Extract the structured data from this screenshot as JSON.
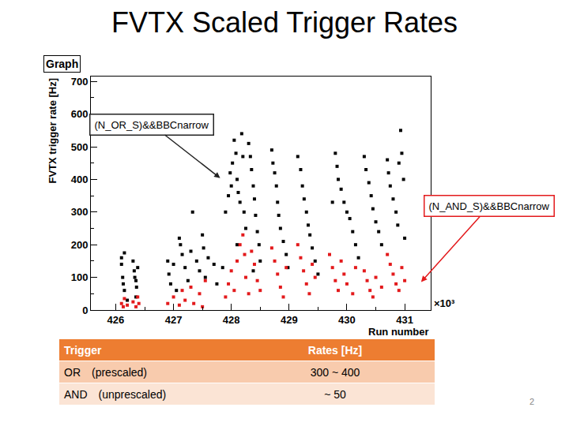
{
  "title": "FVTX Scaled Trigger Rates",
  "chart_data": {
    "type": "scatter",
    "title": "Graph",
    "x_label": "Run number",
    "y_label": "FVTX trigger rate [Hz]",
    "x_scale_label": "×10³",
    "xlim": [
      425570,
      431450
    ],
    "xticks": [
      {
        "value": 426000,
        "label": "426"
      },
      {
        "value": 427000,
        "label": "427"
      },
      {
        "value": 428000,
        "label": "428"
      },
      {
        "value": 429000,
        "label": "429"
      },
      {
        "value": 430000,
        "label": "430"
      },
      {
        "value": 431000,
        "label": "431"
      }
    ],
    "ylim": [
      0,
      715
    ],
    "yticks": [
      0,
      100,
      200,
      300,
      400,
      500,
      600,
      700
    ],
    "grid": false,
    "annotations": [
      {
        "text": "(N_OR_S)&&BBCnarrow",
        "x": 427807,
        "y": 404,
        "color": "#222222"
      },
      {
        "text": "(N_AND_S)&&BBCnarrow",
        "x": 431284,
        "y": 86,
        "color": "#e31a1c"
      }
    ],
    "series": [
      {
        "color": "#000000",
        "marker": "square",
        "x": [
          426100,
          426100,
          426120,
          426130,
          426150,
          426150,
          426300,
          426320,
          426330,
          426350,
          426360,
          426380,
          426200,
          426350,
          426900,
          426920,
          426950,
          427000,
          427050,
          427100,
          427120,
          427150,
          427200,
          427250,
          427300,
          427330,
          427400,
          427450,
          427500,
          427520,
          427550,
          427600,
          427700,
          427750,
          427850,
          427900,
          427950,
          427980,
          428000,
          428020,
          428050,
          428080,
          428100,
          428120,
          428150,
          428180,
          428200,
          428220,
          428250,
          428100,
          428300,
          428330,
          428350,
          428380,
          428400,
          428420,
          428450,
          428480,
          428500,
          428380,
          428700,
          428720,
          428750,
          428780,
          428800,
          428820,
          428850,
          428900,
          428950,
          428980,
          429150,
          429200,
          429230,
          429260,
          429300,
          429330,
          429360,
          429400,
          429450,
          429500,
          429750,
          429800,
          429830,
          429850,
          429900,
          429950,
          430000,
          430050,
          430100,
          430150,
          430200,
          430300,
          430330,
          430380,
          430420,
          430450,
          430500,
          430550,
          430600,
          430700,
          430720,
          430750,
          430800,
          430850,
          430880,
          430900,
          430930,
          430950,
          430980,
          431000
        ],
        "values": [
          160,
          140,
          100,
          80,
          60,
          175,
          150,
          120,
          100,
          90,
          70,
          130,
          30,
          40,
          150,
          110,
          80,
          140,
          60,
          220,
          200,
          170,
          130,
          90,
          180,
          300,
          150,
          120,
          230,
          190,
          100,
          160,
          140,
          80,
          130,
          300,
          350,
          420,
          380,
          450,
          520,
          480,
          400,
          360,
          330,
          540,
          470,
          300,
          250,
          200,
          510,
          470,
          430,
          380,
          340,
          290,
          240,
          200,
          150,
          120,
          490,
          450,
          420,
          380,
          330,
          290,
          250,
          210,
          170,
          130,
          470,
          430,
          380,
          340,
          300,
          260,
          230,
          190,
          150,
          110,
          330,
          480,
          440,
          400,
          370,
          330,
          300,
          280,
          240,
          200,
          160,
          470,
          430,
          390,
          350,
          310,
          270,
          240,
          200,
          460,
          420,
          380,
          340,
          300,
          260,
          450,
          550,
          480,
          400,
          220
        ]
      },
      {
        "color": "#e31a1c",
        "marker": "square",
        "x": [
          426100,
          426130,
          426150,
          426200,
          426300,
          426350,
          426380,
          426400,
          426900,
          427000,
          427100,
          427150,
          427200,
          427300,
          427350,
          427450,
          427500,
          427550,
          427900,
          427950,
          428000,
          428050,
          428100,
          428150,
          428200,
          428230,
          428250,
          428300,
          428350,
          428400,
          428450,
          428500,
          428700,
          428750,
          428800,
          428850,
          428900,
          428950,
          429150,
          429200,
          429250,
          429300,
          429350,
          429400,
          429450,
          429700,
          429750,
          429800,
          429850,
          429900,
          429950,
          430000,
          430100,
          430150,
          430300,
          430350,
          430400,
          430450,
          430500,
          430600,
          430700,
          430750,
          430800,
          430850,
          430900,
          430950,
          431000
        ],
        "values": [
          20,
          10,
          35,
          15,
          25,
          10,
          40,
          20,
          20,
          40,
          15,
          60,
          30,
          70,
          20,
          50,
          10,
          90,
          40,
          80,
          120,
          60,
          150,
          200,
          230,
          170,
          100,
          50,
          180,
          140,
          90,
          60,
          190,
          150,
          110,
          70,
          40,
          130,
          200,
          160,
          120,
          80,
          50,
          140,
          100,
          170,
          130,
          90,
          60,
          150,
          110,
          80,
          50,
          130,
          120,
          90,
          60,
          40,
          100,
          70,
          170,
          140,
          110,
          80,
          60,
          130,
          90
        ]
      }
    ]
  },
  "table": {
    "header": [
      "Trigger",
      "Rates [Hz]"
    ],
    "rows": [
      [
        "OR",
        "(prescaled)",
        "300 ~ 400"
      ],
      [
        "AND",
        "(unprescaled)",
        "~ 50"
      ]
    ]
  },
  "page_number": "2"
}
